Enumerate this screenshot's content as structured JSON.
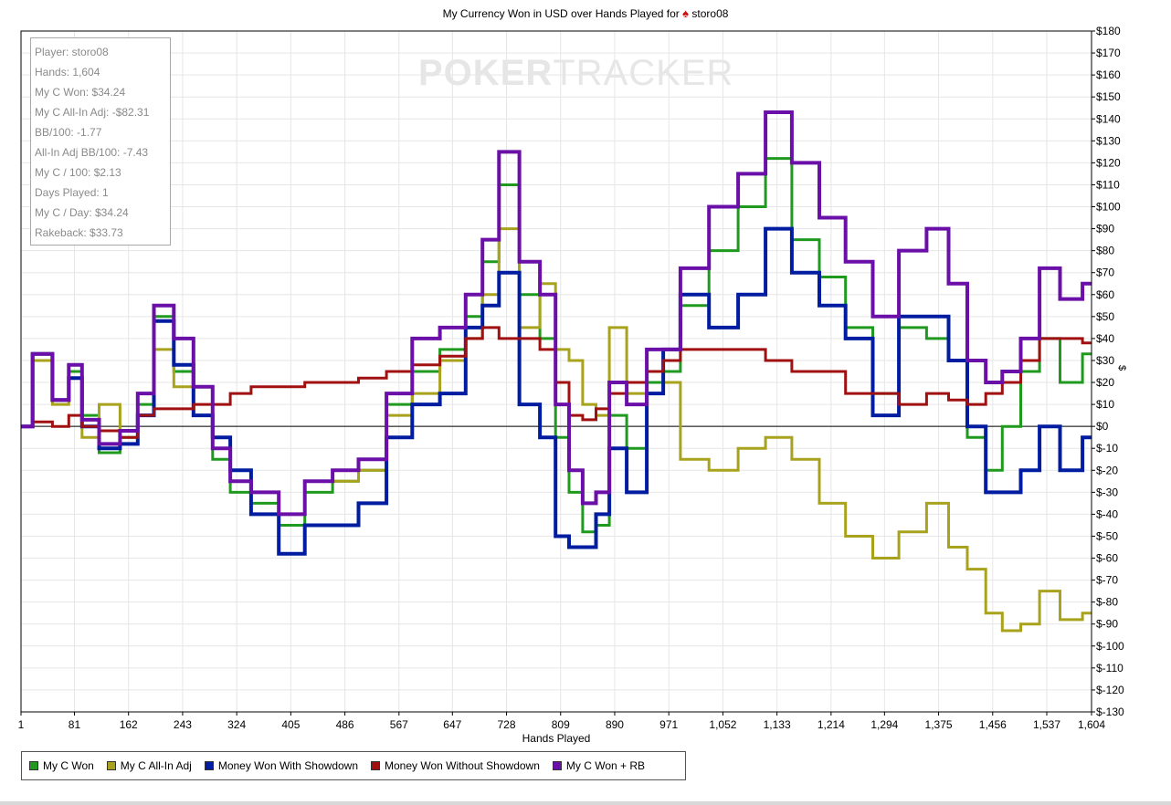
{
  "chart_data": {
    "type": "line",
    "title": "My Currency Won in USD over Hands Played for",
    "player_name": "storo08",
    "xlabel": "Hands Played",
    "ylabel": "$",
    "xlim": [
      1,
      1604
    ],
    "ylim": [
      -130,
      180
    ],
    "x_ticks": [
      1,
      81,
      162,
      243,
      324,
      405,
      486,
      567,
      647,
      728,
      809,
      890,
      971,
      1052,
      1133,
      1214,
      1294,
      1375,
      1456,
      1537,
      1604
    ],
    "x_tick_labels": [
      "1",
      "81",
      "162",
      "243",
      "324",
      "405",
      "486",
      "567",
      "647",
      "728",
      "809",
      "890",
      "971",
      "1,052",
      "1,133",
      "1,214",
      "1,294",
      "1,375",
      "1,456",
      "1,537",
      "1,604"
    ],
    "y_ticks": [
      180,
      170,
      160,
      150,
      140,
      130,
      120,
      110,
      100,
      90,
      80,
      70,
      60,
      50,
      40,
      30,
      20,
      10,
      0,
      -10,
      -20,
      -30,
      -40,
      -50,
      -60,
      -70,
      -80,
      -90,
      -100,
      -110,
      -120,
      -130
    ],
    "y_tick_labels": [
      "$180",
      "$170",
      "$160",
      "$150",
      "$140",
      "$130",
      "$120",
      "$110",
      "$100",
      "$90",
      "$80",
      "$70",
      "$60",
      "$50",
      "$40",
      "$30",
      "$20",
      "$10",
      "$0",
      "$-10",
      "$-20",
      "$-30",
      "$-40",
      "$-50",
      "$-60",
      "$-70",
      "$-80",
      "$-90",
      "$-100",
      "$-110",
      "$-120",
      "$-130"
    ],
    "grid": true,
    "legend_position": "bottom-left",
    "x": [
      1,
      30,
      60,
      81,
      100,
      130,
      162,
      185,
      210,
      243,
      270,
      300,
      324,
      360,
      405,
      440,
      486,
      520,
      567,
      600,
      647,
      680,
      700,
      728,
      760,
      790,
      809,
      830,
      850,
      870,
      890,
      920,
      950,
      971,
      1000,
      1052,
      1090,
      1133,
      1170,
      1214,
      1250,
      1294,
      1330,
      1375,
      1400,
      1430,
      1456,
      1480,
      1510,
      1537,
      1570,
      1604
    ],
    "series": [
      {
        "name": "My C Won",
        "color": "#1f9a1f",
        "width": 3,
        "values": [
          0,
          33,
          12,
          25,
          5,
          -12,
          -5,
          10,
          50,
          25,
          5,
          -15,
          -30,
          -35,
          -45,
          -30,
          -25,
          -20,
          10,
          25,
          35,
          50,
          75,
          110,
          60,
          40,
          -5,
          -30,
          -48,
          -45,
          5,
          -10,
          20,
          25,
          55,
          80,
          100,
          122,
          85,
          68,
          45,
          15,
          45,
          40,
          30,
          -5,
          -20,
          0,
          25,
          40,
          20,
          33
        ]
      },
      {
        "name": "My C All-In Adj",
        "color": "#a8a21c",
        "width": 3,
        "values": [
          0,
          30,
          10,
          22,
          -5,
          10,
          -8,
          15,
          35,
          18,
          5,
          -10,
          -25,
          -30,
          -40,
          -25,
          -25,
          -20,
          5,
          15,
          30,
          40,
          60,
          90,
          45,
          65,
          35,
          30,
          10,
          5,
          45,
          15,
          25,
          20,
          -15,
          -20,
          -10,
          -5,
          -15,
          -35,
          -50,
          -60,
          -48,
          -35,
          -55,
          -65,
          -85,
          -93,
          -90,
          -75,
          -88,
          -85
        ]
      },
      {
        "name": "Money Won With Showdown",
        "color": "#001ca0",
        "width": 4,
        "values": [
          0,
          33,
          12,
          22,
          0,
          -10,
          -8,
          5,
          48,
          28,
          5,
          -5,
          -20,
          -40,
          -58,
          -45,
          -45,
          -35,
          -5,
          10,
          15,
          45,
          55,
          70,
          10,
          -5,
          -50,
          -55,
          -55,
          -40,
          -10,
          -30,
          15,
          35,
          60,
          45,
          60,
          90,
          70,
          55,
          40,
          5,
          50,
          50,
          30,
          0,
          -30,
          -30,
          -20,
          0,
          -20,
          -5
        ]
      },
      {
        "name": "Money Won Without Showdown",
        "color": "#a01010",
        "width": 3,
        "values": [
          0,
          2,
          0,
          5,
          0,
          -2,
          -5,
          5,
          8,
          8,
          10,
          10,
          15,
          18,
          18,
          20,
          20,
          22,
          25,
          28,
          32,
          40,
          45,
          40,
          40,
          35,
          20,
          5,
          3,
          8,
          15,
          20,
          25,
          30,
          35,
          35,
          35,
          30,
          25,
          25,
          15,
          15,
          10,
          15,
          12,
          10,
          15,
          20,
          30,
          40,
          40,
          38
        ]
      },
      {
        "name": "My C Won + RB",
        "color": "#6a0fa8",
        "width": 4,
        "values": [
          0,
          33,
          12,
          28,
          3,
          -8,
          -2,
          15,
          55,
          40,
          18,
          -10,
          -25,
          -30,
          -40,
          -25,
          -20,
          -15,
          15,
          40,
          45,
          60,
          85,
          125,
          75,
          60,
          10,
          -20,
          -35,
          -30,
          20,
          10,
          35,
          35,
          72,
          100,
          115,
          143,
          120,
          95,
          75,
          50,
          80,
          90,
          65,
          30,
          20,
          25,
          40,
          72,
          58,
          65
        ]
      }
    ]
  },
  "stats": [
    "Player: storo08",
    "Hands: 1,604",
    "My C Won: $34.24",
    "My C All-In Adj: -$82.31",
    "BB/100: -1.77",
    "All-In Adj BB/100: -7.43",
    "My C / 100: $2.13",
    "Days Played: 1",
    "My C / Day: $34.24",
    "Rakeback: $33.73"
  ],
  "watermark": {
    "part1": "POKER",
    "part2": "TRACKER"
  },
  "icons": {
    "title_icon": "spade-icon"
  }
}
